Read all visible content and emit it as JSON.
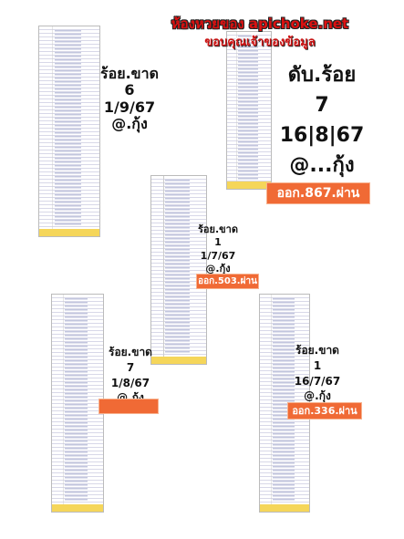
{
  "header": {
    "title": "ห้องหวยของ apichoke.net",
    "subtitle": "ขอบคุณเจ้าของข้อมูล"
  },
  "panels": [
    {
      "heading": "ร้อย.ขาด",
      "number": "6",
      "date": "1/9/67",
      "author": "@.กุ้ง"
    },
    {
      "heading": "ดับ.ร้อย",
      "number": "7",
      "date": "16|8|67",
      "author": "@...กุ้ง",
      "result": "ออก.867.ผ่าน"
    },
    {
      "heading": "ร้อย.ขาด",
      "number": "1",
      "date": "1/7/67",
      "author": "@.กุ้ง",
      "result": "ออก.503.ผ่าน"
    },
    {
      "heading": "ร้อย.ขาด",
      "number": "7",
      "date": "1/8/67",
      "author": "@.กุ้ง"
    },
    {
      "heading": "ร้อย.ขาด",
      "number": "1",
      "date": "16/7/67",
      "author": "@.กุ้ง",
      "result": "ออก.336.ผ่าน"
    }
  ]
}
